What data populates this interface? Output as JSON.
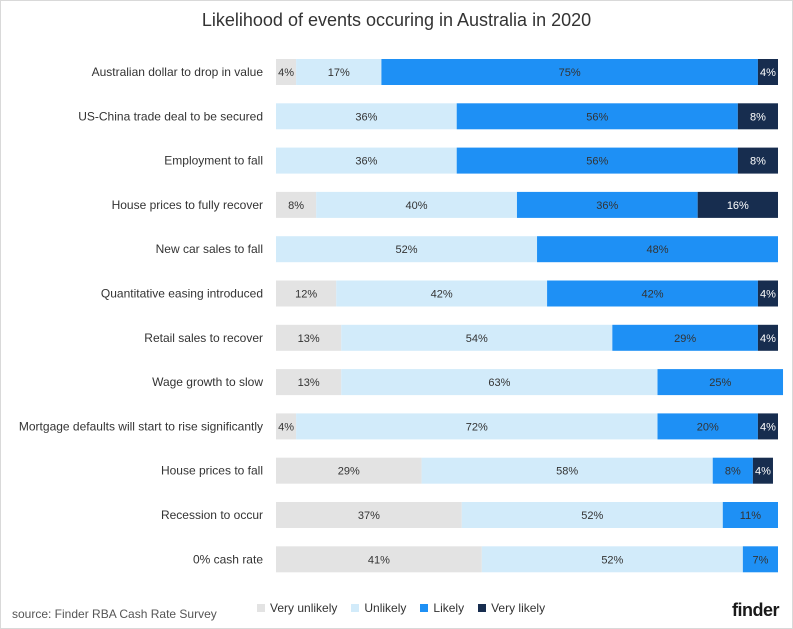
{
  "chart_data": {
    "type": "bar",
    "orientation": "horizontal",
    "stacked": true,
    "title": "Likelihood of events occuring in Australia in 2020",
    "categories": [
      "Australian dollar to drop in value",
      "US-China trade deal to be secured",
      "Employment to fall",
      "House prices to fully recover",
      "New car sales to fall",
      "Quantitative easing introduced",
      "Retail sales to recover",
      "Wage growth to slow",
      "Mortgage defaults will start to rise significantly",
      "House prices to fall",
      "Recession to occur",
      "0% cash rate"
    ],
    "series": [
      {
        "name": "Very unlikely",
        "color": "#e3e3e3",
        "values": [
          4,
          0,
          0,
          8,
          0,
          12,
          13,
          13,
          4,
          29,
          37,
          41
        ]
      },
      {
        "name": "Unlikely",
        "color": "#d2ebfa",
        "values": [
          17,
          36,
          36,
          40,
          52,
          42,
          54,
          63,
          72,
          58,
          52,
          52
        ]
      },
      {
        "name": "Likely",
        "color": "#1e90f5",
        "values": [
          75,
          56,
          56,
          36,
          48,
          42,
          29,
          25,
          20,
          8,
          11,
          7
        ]
      },
      {
        "name": "Very likely",
        "color": "#172d4f",
        "values": [
          4,
          8,
          8,
          16,
          0,
          4,
          4,
          0,
          4,
          4,
          0,
          0
        ]
      }
    ],
    "xlim": [
      0,
      100
    ],
    "unit": "%"
  },
  "footer": {
    "source": "source: Finder RBA Cash Rate Survey",
    "brand": "finder"
  }
}
